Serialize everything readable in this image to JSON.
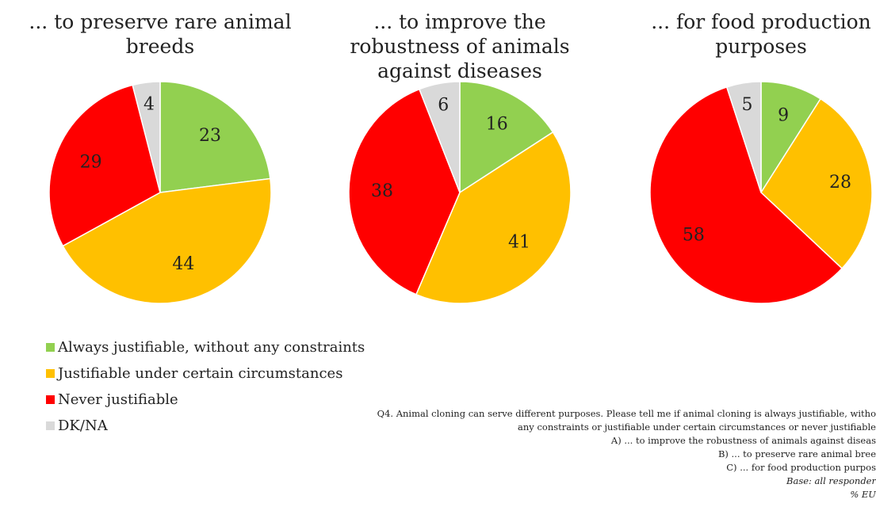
{
  "chart_data": [
    {
      "type": "pie",
      "title": "... to preserve rare animal breeds",
      "categories": [
        "Always justifiable, without any constraints",
        "Justifiable under certain circumstances",
        "Never justifiable",
        "DK/NA"
      ],
      "values": [
        23,
        44,
        29,
        4
      ],
      "colors": [
        "#92d050",
        "#ffc000",
        "#ff0000",
        "#d9d9d9"
      ]
    },
    {
      "type": "pie",
      "title": "... to improve the robustness of animals against diseases",
      "categories": [
        "Always justifiable, without any constraints",
        "Justifiable under certain circumstances",
        "Never justifiable",
        "DK/NA"
      ],
      "values": [
        16,
        41,
        38,
        6
      ],
      "colors": [
        "#92d050",
        "#ffc000",
        "#ff0000",
        "#d9d9d9"
      ]
    },
    {
      "type": "pie",
      "title": "... for food production purposes",
      "categories": [
        "Always justifiable, without any constraints",
        "Justifiable under certain circumstances",
        "Never justifiable",
        "DK/NA"
      ],
      "values": [
        9,
        28,
        58,
        5
      ],
      "colors": [
        "#92d050",
        "#ffc000",
        "#ff0000",
        "#d9d9d9"
      ]
    }
  ],
  "legend": {
    "placement": "bottom-left",
    "items": [
      {
        "label": "Always justifiable, without any constraints",
        "color": "#92d050"
      },
      {
        "label": "Justifiable under certain circumstances",
        "color": "#ffc000"
      },
      {
        "label": "Never justifiable",
        "color": "#ff0000"
      },
      {
        "label": "DK/NA",
        "color": "#d9d9d9"
      }
    ]
  },
  "footnote": {
    "question_line1": "Q4. Animal cloning can serve different purposes. Please tell me if animal cloning is always justifiable, witho",
    "question_line2": "any constraints or justifiable under certain circumstances or never justifiable",
    "item_a": "A) ... to improve the robustness of animals against diseas",
    "item_b": "B) ... to preserve rare animal bree",
    "item_c": "C) ... for food production purpos",
    "base": "Base: all responder",
    "unit": "% EU"
  }
}
